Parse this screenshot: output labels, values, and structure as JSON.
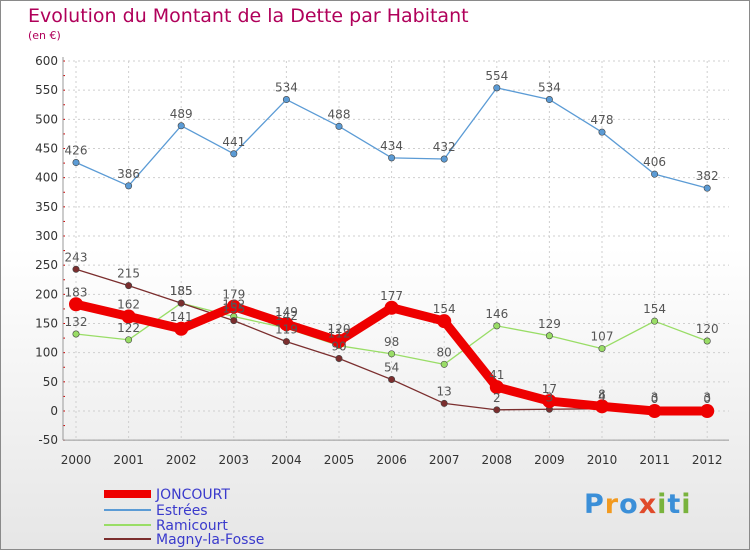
{
  "title": "Evolution du Montant de la Dette par Habitant",
  "unit": "(en €)",
  "logo": "Proxiti",
  "colors": {
    "title": "#b0005a",
    "legend_text": "#3a3acc"
  },
  "chart_data": {
    "type": "line",
    "title": "Evolution du Montant de la Dette par Habitant",
    "ylabel": "(en €)",
    "ylim": [
      -50,
      600
    ],
    "yticks": [
      -50,
      0,
      50,
      100,
      150,
      200,
      250,
      300,
      350,
      400,
      450,
      500,
      550,
      600
    ],
    "x": [
      "2000",
      "2001",
      "2002",
      "2003",
      "2004",
      "2005",
      "2006",
      "2007",
      "2008",
      "2009",
      "2010",
      "2011",
      "2012"
    ],
    "legend_position": "bottom-left",
    "series": [
      {
        "name": "JONCOURT",
        "color": "#ee0000",
        "values": [
          183,
          162,
          141,
          179,
          149,
          120,
          177,
          154,
          41,
          17,
          8,
          0,
          0
        ]
      },
      {
        "name": "Estrées",
        "color": "#5b9bd5",
        "values": [
          426,
          386,
          489,
          441,
          534,
          488,
          434,
          432,
          554,
          534,
          478,
          406,
          382
        ]
      },
      {
        "name": "Ramicourt",
        "color": "#99dd66",
        "values": [
          132,
          122,
          185,
          162,
          142,
          112,
          98,
          80,
          146,
          129,
          107,
          154,
          120
        ]
      },
      {
        "name": "Magny-la-Fosse",
        "color": "#7b2e2e",
        "values": [
          243,
          215,
          185,
          155,
          119,
          90,
          54,
          13,
          2,
          3,
          4,
          3,
          3
        ]
      }
    ]
  }
}
